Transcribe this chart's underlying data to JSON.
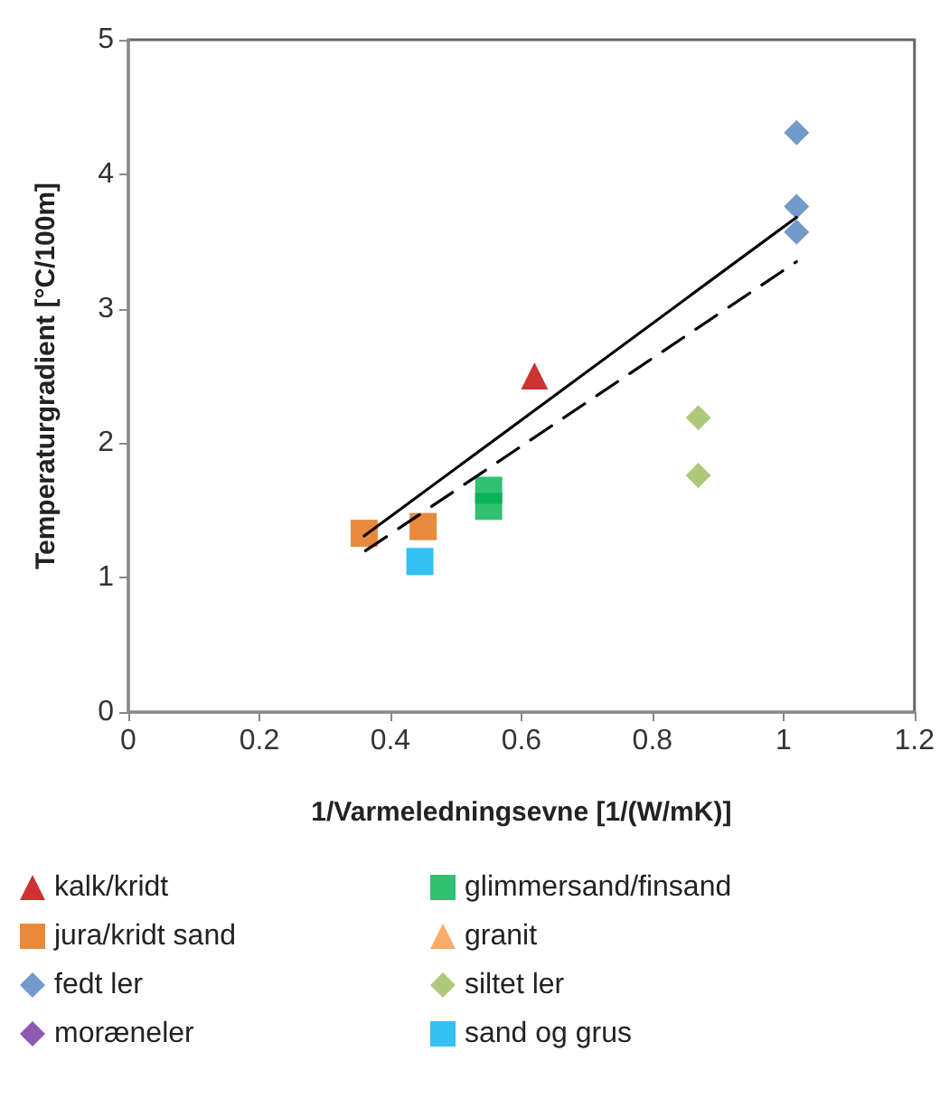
{
  "chart_data": {
    "type": "scatter",
    "xlabel": "1/Varmeledningsevne [1/(W/mK)]",
    "ylabel": "Temperaturgradient [°C/100m]",
    "xlim": [
      0,
      1.2
    ],
    "xticks": [
      0,
      0.2,
      0.4,
      0.6,
      0.8,
      1,
      1.2
    ],
    "ylim": [
      0,
      5
    ],
    "yticks": [
      0,
      1,
      2,
      3,
      4,
      5
    ],
    "grid": false,
    "legend": "bottom",
    "series": [
      {
        "name": "kalk/kridt",
        "color": "#c00000",
        "marker": "triangle",
        "x": [
          0.62
        ],
        "values": [
          2.5
        ]
      },
      {
        "name": "glimmersand/finsand",
        "color": "#00b050",
        "marker": "square",
        "x": [
          0.55,
          0.55
        ],
        "values": [
          1.65,
          1.53
        ]
      },
      {
        "name": "jura/kridt sand",
        "color": "#e46c0a",
        "marker": "square",
        "x": [
          0.36,
          0.45
        ],
        "values": [
          1.33,
          1.38
        ]
      },
      {
        "name": "granit",
        "color": "#f79646",
        "marker": "triangle"
      },
      {
        "name": "fedt ler",
        "color": "#4f81bd",
        "marker": "diamond",
        "x": [
          1.02,
          1.02,
          1.02
        ],
        "values": [
          4.31,
          3.76,
          3.57
        ]
      },
      {
        "name": "siltet ler",
        "color": "#9bbb59",
        "marker": "diamond",
        "x": [
          0.87,
          0.87
        ],
        "values": [
          2.19,
          1.76
        ]
      },
      {
        "name": "moræneler",
        "color": "#7030a0",
        "marker": "diamond"
      },
      {
        "name": "sand og grus",
        "color": "#00b0f0",
        "marker": "square",
        "x": [
          0.445
        ],
        "values": [
          1.12
        ]
      },
      {
        "type": "line",
        "color": "#000000",
        "marker": "none",
        "line_style": "solid",
        "x": [
          0.36,
          1.02
        ],
        "values": [
          1.31,
          3.68
        ]
      },
      {
        "type": "line",
        "color": "#000000",
        "marker": "none",
        "line_style": "dashed",
        "x": [
          0.362,
          1.02
        ],
        "values": [
          1.2,
          3.35
        ]
      }
    ]
  }
}
